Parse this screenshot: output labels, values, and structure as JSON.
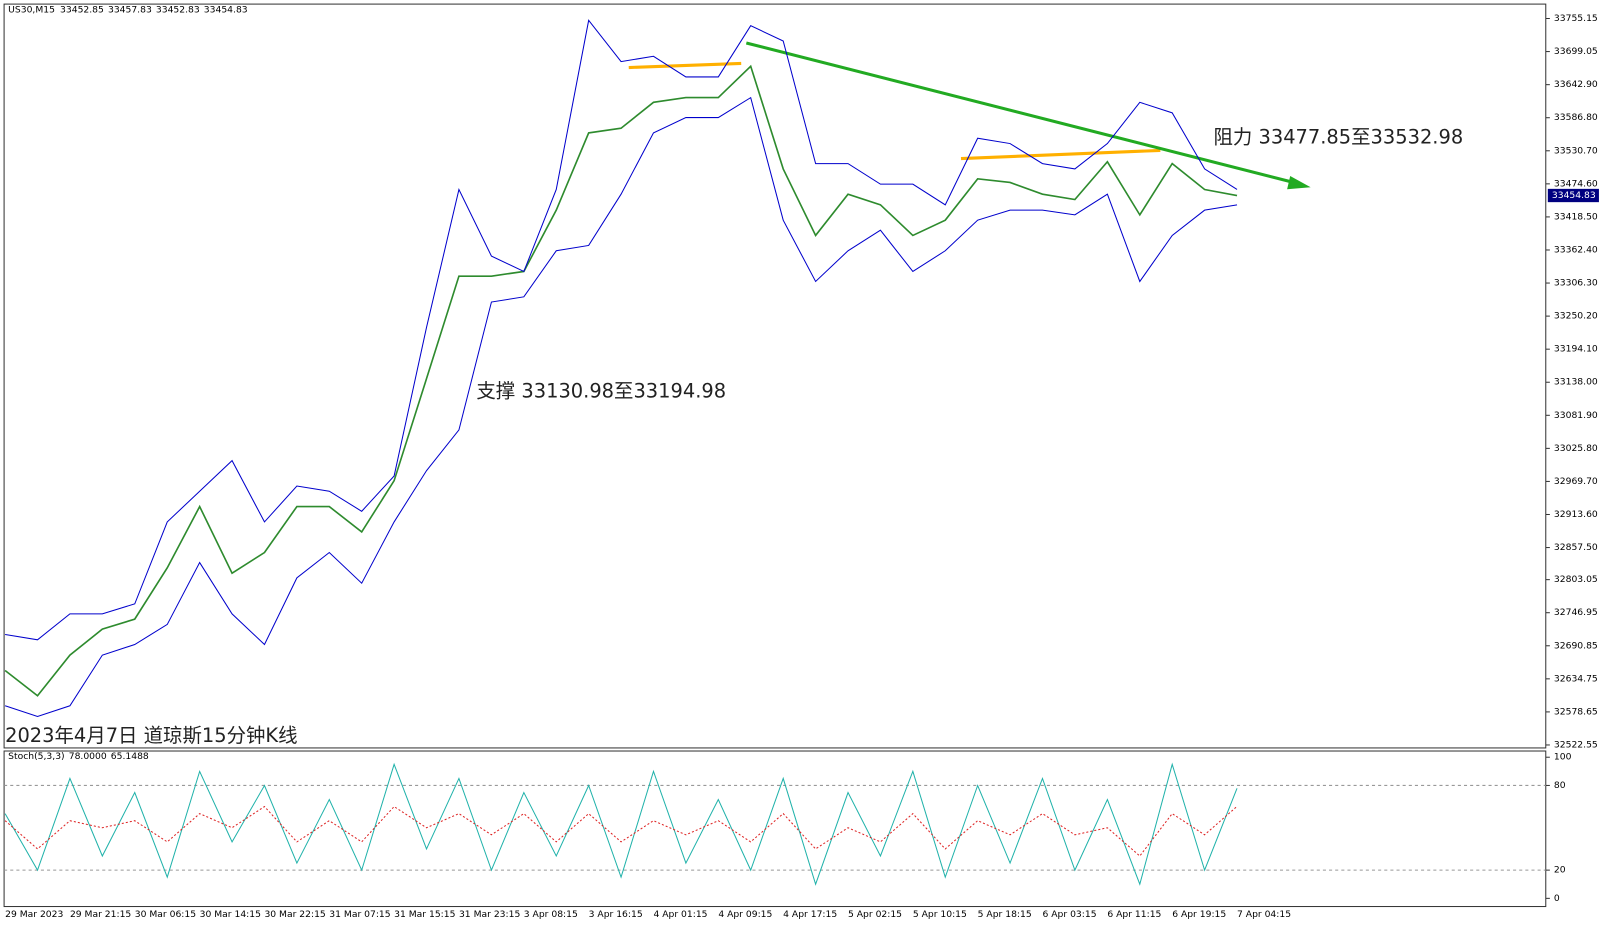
{
  "chart_data": [
    {
      "type": "line",
      "symbol": "US30,M15",
      "ohlc": [
        33452.85,
        33457.83,
        33452.83,
        33454.83
      ],
      "title": "2023年4月7日 道琼斯15分钟K线",
      "annotations": [
        "阻力 33477.85至33532.98",
        "支撑 33130.98至33194.98"
      ],
      "last_price": 33454.83,
      "categories": [
        "29 Mar 2023",
        null,
        "29 Mar 21:15",
        null,
        "30 Mar 06:15",
        null,
        "30 Mar 14:15",
        null,
        "30 Mar 22:15",
        null,
        "31 Mar 07:15",
        null,
        "31 Mar 15:15",
        null,
        "31 Mar 23:15",
        null,
        "3 Apr 08:15",
        null,
        "3 Apr 16:15",
        null,
        "4 Apr 01:15",
        null,
        "4 Apr 09:15",
        null,
        "4 Apr 17:15",
        null,
        "5 Apr 02:15",
        null,
        "5 Apr 10:15",
        null,
        "5 Apr 18:15",
        null,
        "6 Apr 03:15",
        null,
        "6 Apr 11:15",
        null,
        "6 Apr 19:15",
        null,
        "7 Apr 04:15"
      ],
      "series": [
        {
          "color": "#2e8b2e",
          "values": [
            32649,
            32606,
            32675,
            32719,
            32736,
            32823,
            32927,
            32814,
            32849,
            32927,
            32927,
            32884,
            32971,
            33144,
            33318,
            33318,
            33326,
            33430,
            33561,
            33569,
            33613,
            33621,
            33621,
            33674,
            33500,
            33387,
            33457,
            33439,
            33387,
            33413,
            33483,
            33477,
            33457,
            33448,
            33512,
            33422,
            33509,
            33465,
            33454.83
          ]
        },
        {
          "color": "#0000cc",
          "values": [
            32710,
            32701,
            32745,
            32745,
            32762,
            32901,
            32953,
            33005,
            32901,
            32962,
            32953,
            32919,
            32979,
            33231,
            33465,
            33352,
            33326,
            33465,
            33752,
            33682,
            33691,
            33656,
            33656,
            33743,
            33717,
            33509,
            33509,
            33474,
            33474,
            33439,
            33552,
            33543,
            33509,
            33500,
            33543,
            33613,
            33595,
            33500,
            33465
          ]
        },
        {
          "color": "#0000cc",
          "values": [
            32589,
            32571,
            32589,
            32675,
            32693,
            32727,
            32832,
            32745,
            32693,
            32806,
            32849,
            32797,
            32901,
            32988,
            33057,
            33274,
            33283,
            33361,
            33370,
            33457,
            33561,
            33587,
            33587,
            33621,
            33413,
            33309,
            33361,
            33396,
            33326,
            33361,
            33413,
            33430,
            33430,
            33422,
            33457,
            33309,
            33387,
            33430,
            33439
          ]
        }
      ],
      "ylim": [
        32517.5,
        33779.6
      ],
      "yticks": [
        33755.15,
        33699.05,
        {
          "value": 33642.9,
          "label": "33642.90"
        },
        {
          "value": 33586.8,
          "label": "33586.80"
        },
        {
          "value": 33530.7,
          "label": "33530.70"
        },
        {
          "value": 33474.6,
          "label": "33474.60"
        },
        {
          "value": 33418.5,
          "label": "33418.50"
        },
        {
          "value": 33362.4,
          "label": "33362.40"
        },
        {
          "value": 33306.3,
          "label": "33306.30"
        },
        {
          "value": 33250.2,
          "label": "33250.20"
        },
        {
          "value": 33194.1,
          "label": "33194.10"
        },
        {
          "value": 33138,
          "label": "33138.00"
        },
        {
          "value": 33081.9,
          "label": "33081.90"
        },
        {
          "value": 33025.8,
          "label": "33025.80"
        },
        {
          "value": 32969.7,
          "label": "32969.70"
        },
        {
          "value": 32913.6,
          "label": "32913.60"
        },
        {
          "value": 32857.5,
          "label": "32857.50"
        },
        32803.05,
        32746.95,
        32690.85,
        32634.75,
        32578.65,
        32522.55
      ],
      "grid": false
    },
    {
      "type": "line",
      "name": "Stoch(5,3,3)",
      "readout": [
        "78.0000",
        "65.1488"
      ],
      "series": [
        {
          "color": "#20b2aa",
          "values": [
            60,
            20,
            85,
            30,
            75,
            15,
            90,
            40,
            80,
            25,
            70,
            20,
            95,
            35,
            85,
            20,
            75,
            30,
            80,
            15,
            90,
            25,
            70,
            20,
            85,
            10,
            75,
            30,
            90,
            15,
            80,
            25,
            85,
            20,
            70,
            10,
            95,
            20,
            78
          ]
        },
        {
          "color": "#dd2222",
          "dashed": true,
          "values": [
            55,
            35,
            55,
            50,
            55,
            40,
            60,
            50,
            65,
            40,
            55,
            40,
            65,
            50,
            60,
            45,
            60,
            40,
            60,
            40,
            55,
            45,
            55,
            40,
            60,
            35,
            50,
            40,
            60,
            35,
            55,
            45,
            60,
            45,
            50,
            30,
            60,
            45,
            65.1488
          ]
        }
      ],
      "ylim": [
        -5.8,
        104.4
      ],
      "yticks": [
        100,
        80,
        20,
        0
      ],
      "level_lines": true
    }
  ]
}
